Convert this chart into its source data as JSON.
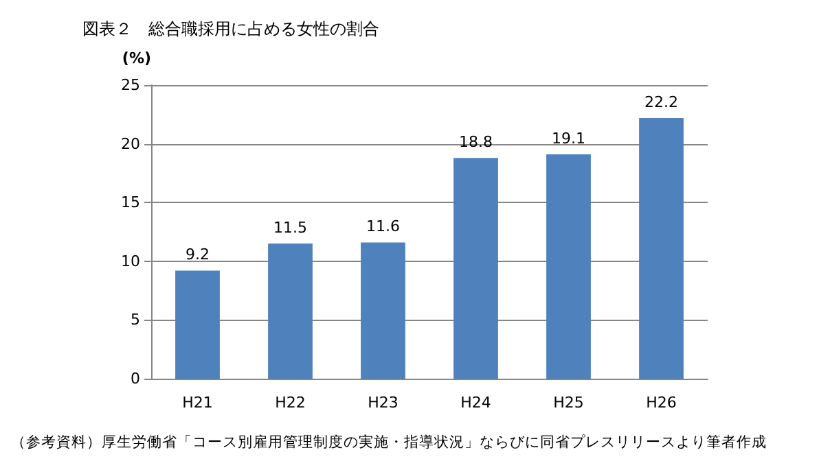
{
  "chart_data": {
    "type": "bar",
    "title": "図表２　総合職採用に占める女性の割合",
    "ylabel": "(%)",
    "categories": [
      "H21",
      "H22",
      "H23",
      "H24",
      "H25",
      "H26"
    ],
    "values": [
      9.2,
      11.5,
      11.6,
      18.8,
      19.1,
      22.2
    ],
    "color": "#4f81bd",
    "ylim": [
      0,
      25
    ],
    "yticks": [
      0,
      5,
      10,
      15,
      20,
      25
    ],
    "grid": "y",
    "data_labels": true,
    "annotations": [
      "（参考資料）厚生労働省「コース別雇用管理制度の実施・指導状況」ならびに同省プレスリリースより筆者作成"
    ]
  }
}
